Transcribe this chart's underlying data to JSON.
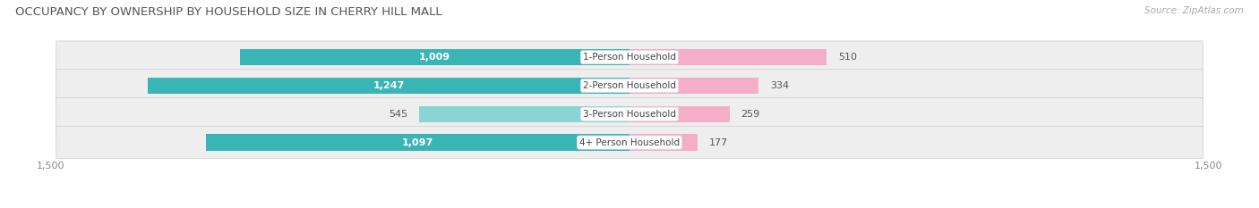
{
  "title": "OCCUPANCY BY OWNERSHIP BY HOUSEHOLD SIZE IN CHERRY HILL MALL",
  "source": "Source: ZipAtlas.com",
  "categories": [
    "1-Person Household",
    "2-Person Household",
    "3-Person Household",
    "4+ Person Household"
  ],
  "owner_values": [
    1009,
    1247,
    545,
    1097
  ],
  "renter_values": [
    510,
    334,
    259,
    177
  ],
  "owner_color_dark": "#3ab5b5",
  "owner_color_light": "#89d4d4",
  "renter_color_dark": "#f07aaa",
  "renter_color_light": "#f5aec8",
  "row_bg_color": "#eeeeee",
  "axis_max": 1500,
  "title_fontsize": 9.5,
  "label_fontsize": 8,
  "value_fontsize": 8,
  "tick_fontsize": 8,
  "source_fontsize": 7.5,
  "owner_threshold": 700
}
